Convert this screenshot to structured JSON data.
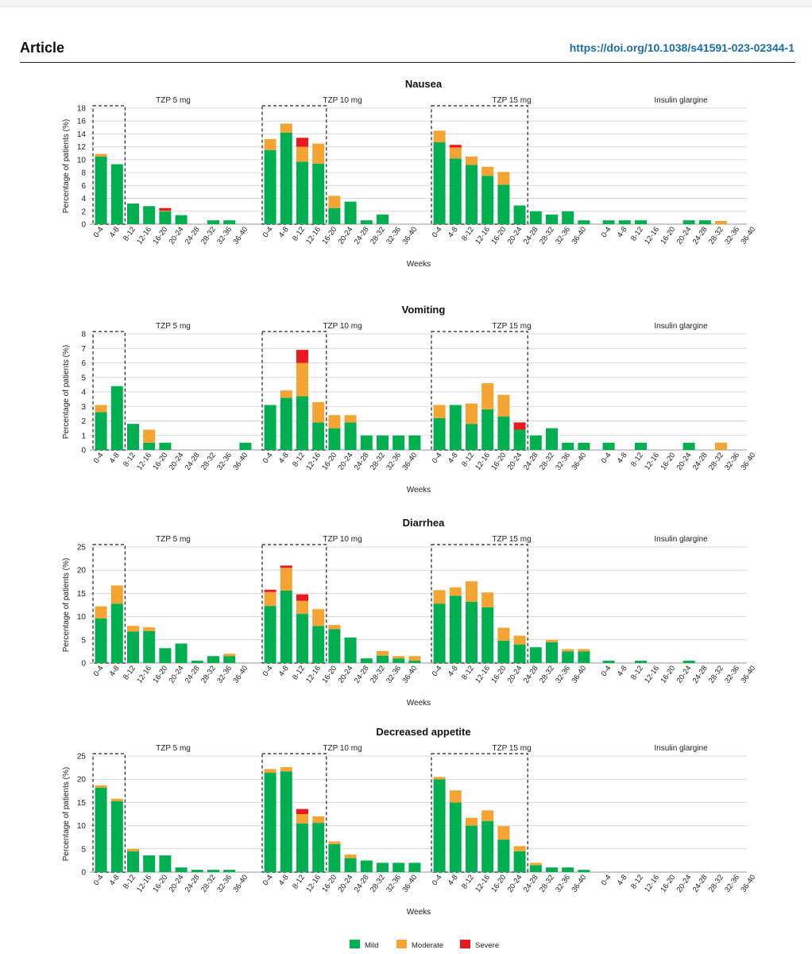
{
  "header": {
    "title": "Article",
    "doi": "https://doi.org/10.1038/s41591-023-02344-1"
  },
  "colors": {
    "mild": "#00b050",
    "moderate": "#f4a433",
    "severe": "#e8191f"
  },
  "chart_data": [
    {
      "type": "bar",
      "stacked": true,
      "title": "Nausea",
      "ylabel": "Percentage of patients (%)",
      "xlabel": "Weeks",
      "ylim": [
        0,
        18
      ],
      "yticks": [
        0,
        2,
        4,
        6,
        8,
        10,
        12,
        14,
        16,
        18
      ],
      "categories": [
        "0-4",
        "4-8",
        "8-12",
        "12-16",
        "16-20",
        "20-24",
        "24-28",
        "28-32",
        "32-36",
        "36-40"
      ],
      "panels": [
        {
          "name": "TZP 5 mg",
          "box_bins": 2,
          "mild": [
            10.5,
            9.3,
            3.2,
            2.8,
            2.0,
            1.4,
            0,
            0.6,
            0.6,
            0
          ],
          "moderate": [
            0.4,
            0,
            0,
            0,
            0.1,
            0,
            0,
            0,
            0,
            0
          ],
          "severe": [
            0,
            0,
            0,
            0,
            0.4,
            0,
            0,
            0,
            0,
            0
          ]
        },
        {
          "name": "TZP 10 mg",
          "box_bins": 4,
          "mild": [
            11.5,
            14.2,
            9.7,
            9.4,
            2.5,
            3.5,
            0.6,
            1.5,
            0,
            0
          ],
          "moderate": [
            1.7,
            1.4,
            2.3,
            3.1,
            1.9,
            0,
            0,
            0,
            0,
            0
          ],
          "severe": [
            0,
            0,
            1.4,
            0,
            0,
            0,
            0,
            0,
            0,
            0
          ]
        },
        {
          "name": "TZP 15 mg",
          "box_bins": 6,
          "mild": [
            12.7,
            10.2,
            9.2,
            7.5,
            6.1,
            2.9,
            2.0,
            1.5,
            2.0,
            0.6
          ],
          "moderate": [
            1.8,
            1.7,
            1.3,
            1.4,
            2.0,
            0,
            0,
            0,
            0,
            0
          ],
          "severe": [
            0,
            0.4,
            0,
            0,
            0,
            0,
            0,
            0,
            0,
            0
          ]
        },
        {
          "name": "Insulin glargine",
          "box_bins": 0,
          "mild": [
            0.6,
            0.6,
            0.6,
            0,
            0,
            0.6,
            0.6,
            0,
            0,
            0
          ],
          "moderate": [
            0,
            0,
            0,
            0,
            0,
            0,
            0,
            0.5,
            0,
            0
          ],
          "severe": [
            0,
            0,
            0,
            0,
            0,
            0,
            0,
            0,
            0,
            0
          ]
        }
      ]
    },
    {
      "type": "bar",
      "stacked": true,
      "title": "Vomiting",
      "ylabel": "Percentage of patients (%)",
      "xlabel": "Weeks",
      "ylim": [
        0,
        8
      ],
      "yticks": [
        0,
        1,
        2,
        3,
        4,
        5,
        6,
        7,
        8
      ],
      "categories": [
        "0-4",
        "4-8",
        "8-12",
        "12-16",
        "16-20",
        "20-24",
        "24-28",
        "28-32",
        "32-36",
        "36-40"
      ],
      "panels": [
        {
          "name": "TZP 5 mg",
          "box_bins": 2,
          "mild": [
            2.6,
            4.4,
            1.8,
            0.5,
            0.5,
            0,
            0,
            0,
            0,
            0.5
          ],
          "moderate": [
            0.5,
            0,
            0,
            0.9,
            0,
            0,
            0,
            0,
            0,
            0
          ],
          "severe": [
            0,
            0,
            0,
            0,
            0,
            0,
            0,
            0,
            0,
            0
          ]
        },
        {
          "name": "TZP 10 mg",
          "box_bins": 4,
          "mild": [
            3.1,
            3.6,
            3.7,
            1.9,
            1.5,
            1.9,
            1.0,
            1.0,
            1.0,
            1.0
          ],
          "moderate": [
            0,
            0.5,
            2.3,
            1.4,
            0.9,
            0.5,
            0,
            0,
            0,
            0
          ],
          "severe": [
            0,
            0,
            0.9,
            0,
            0,
            0,
            0,
            0,
            0,
            0
          ]
        },
        {
          "name": "TZP 15 mg",
          "box_bins": 6,
          "mild": [
            2.2,
            3.1,
            1.8,
            2.8,
            2.3,
            1.4,
            1.0,
            1.5,
            0.5,
            0.5
          ],
          "moderate": [
            0.9,
            0,
            1.4,
            1.8,
            1.5,
            0,
            0,
            0,
            0,
            0
          ],
          "severe": [
            0,
            0,
            0,
            0,
            0,
            0.5,
            0,
            0,
            0,
            0
          ]
        },
        {
          "name": "Insulin glargine",
          "box_bins": 0,
          "mild": [
            0.5,
            0,
            0.5,
            0,
            0,
            0.5,
            0,
            0,
            0,
            0
          ],
          "moderate": [
            0,
            0,
            0,
            0,
            0,
            0,
            0,
            0.5,
            0,
            0
          ],
          "severe": [
            0,
            0,
            0,
            0,
            0,
            0,
            0,
            0,
            0,
            0
          ]
        }
      ]
    },
    {
      "type": "bar",
      "stacked": true,
      "title": "Diarrhea",
      "ylabel": "Percentage of patients (%)",
      "xlabel": "Weeks",
      "ylim": [
        0,
        25
      ],
      "yticks": [
        0,
        5,
        10,
        15,
        20,
        25
      ],
      "categories": [
        "0-4",
        "4-8",
        "8-12",
        "12-16",
        "16-20",
        "20-24",
        "24-28",
        "28-32",
        "32-36",
        "36-40"
      ],
      "panels": [
        {
          "name": "TZP 5 mg",
          "box_bins": 2,
          "mild": [
            9.6,
            12.8,
            6.8,
            6.9,
            3.2,
            4.2,
            0.5,
            1.5,
            1.5,
            0
          ],
          "moderate": [
            2.6,
            3.9,
            1.2,
            0.8,
            0,
            0,
            0,
            0,
            0.5,
            0
          ],
          "severe": [
            0,
            0,
            0,
            0,
            0,
            0,
            0,
            0,
            0,
            0
          ]
        },
        {
          "name": "TZP 10 mg",
          "box_bins": 4,
          "mild": [
            12.3,
            15.6,
            10.6,
            8.0,
            7.3,
            5.5,
            1.0,
            1.6,
            1.0,
            0.5
          ],
          "moderate": [
            3.0,
            4.9,
            2.8,
            3.6,
            0.9,
            0,
            0,
            1.0,
            0.5,
            1.0
          ],
          "severe": [
            0.5,
            0.5,
            1.4,
            0,
            0,
            0,
            0,
            0,
            0,
            0
          ]
        },
        {
          "name": "TZP 15 mg",
          "box_bins": 6,
          "mild": [
            12.8,
            14.5,
            13.2,
            12.0,
            4.8,
            4.0,
            3.4,
            4.5,
            2.5,
            2.5
          ],
          "moderate": [
            2.9,
            1.8,
            4.4,
            3.2,
            2.8,
            1.9,
            0,
            0.5,
            0.5,
            0.5
          ],
          "severe": [
            0,
            0,
            0,
            0,
            0,
            0,
            0,
            0,
            0,
            0
          ]
        },
        {
          "name": "Insulin glargine",
          "box_bins": 0,
          "mild": [
            0.5,
            0,
            0.5,
            0,
            0,
            0.5,
            0,
            0,
            0,
            0
          ],
          "moderate": [
            0,
            0,
            0,
            0,
            0,
            0,
            0,
            0,
            0,
            0
          ],
          "severe": [
            0,
            0,
            0,
            0,
            0,
            0,
            0,
            0,
            0,
            0
          ]
        }
      ]
    },
    {
      "type": "bar",
      "stacked": true,
      "title": "Decreased appetite",
      "ylabel": "Percentage of patients (%)",
      "xlabel": "Weeks",
      "ylim": [
        0,
        25
      ],
      "yticks": [
        0,
        5,
        10,
        15,
        20,
        25
      ],
      "categories": [
        "0-4",
        "4-8",
        "8-12",
        "12-16",
        "16-20",
        "20-24",
        "24-28",
        "28-32",
        "32-36",
        "36-40"
      ],
      "panels": [
        {
          "name": "TZP 5 mg",
          "box_bins": 2,
          "mild": [
            18.2,
            15.3,
            4.5,
            3.6,
            3.6,
            1.0,
            0.5,
            0.5,
            0.5,
            0
          ],
          "moderate": [
            0.5,
            0.5,
            0.5,
            0,
            0,
            0,
            0,
            0,
            0,
            0
          ],
          "severe": [
            0,
            0,
            0,
            0,
            0,
            0,
            0,
            0,
            0,
            0
          ]
        },
        {
          "name": "TZP 10 mg",
          "box_bins": 4,
          "mild": [
            21.4,
            21.7,
            10.5,
            10.6,
            6.0,
            3.0,
            2.5,
            2.0,
            2.0,
            2.0
          ],
          "moderate": [
            0.8,
            0.9,
            2.0,
            1.4,
            0.6,
            0.8,
            0,
            0,
            0,
            0
          ],
          "severe": [
            0,
            0,
            1.1,
            0,
            0,
            0,
            0,
            0,
            0,
            0
          ]
        },
        {
          "name": "TZP 15 mg",
          "box_bins": 6,
          "mild": [
            20.0,
            15.0,
            10.0,
            11.0,
            7.0,
            4.5,
            1.5,
            1.0,
            1.0,
            0.5
          ],
          "moderate": [
            0.5,
            2.6,
            1.7,
            2.3,
            2.9,
            1.1,
            0.5,
            0,
            0,
            0
          ],
          "severe": [
            0,
            0,
            0,
            0,
            0,
            0,
            0,
            0,
            0,
            0
          ]
        },
        {
          "name": "Insulin glargine",
          "box_bins": 0,
          "mild": [
            0,
            0,
            0,
            0,
            0,
            0,
            0,
            0,
            0,
            0
          ],
          "moderate": [
            0,
            0,
            0,
            0,
            0,
            0,
            0,
            0,
            0,
            0
          ],
          "severe": [
            0,
            0,
            0,
            0,
            0,
            0,
            0,
            0,
            0,
            0
          ]
        }
      ]
    }
  ],
  "legend": {
    "items": [
      "Mild",
      "Moderate",
      "Severe"
    ],
    "placement": "bottom-center"
  }
}
